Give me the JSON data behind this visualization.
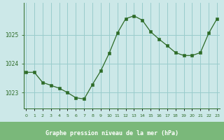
{
  "x": [
    0,
    1,
    2,
    3,
    4,
    5,
    6,
    7,
    8,
    9,
    10,
    11,
    12,
    13,
    14,
    15,
    16,
    17,
    18,
    19,
    20,
    21,
    22,
    23
  ],
  "y": [
    1023.7,
    1023.7,
    1023.35,
    1023.25,
    1023.15,
    1023.0,
    1022.82,
    1022.78,
    1023.28,
    1023.75,
    1024.35,
    1025.05,
    1025.55,
    1025.65,
    1025.5,
    1025.1,
    1024.85,
    1024.62,
    1024.38,
    1024.28,
    1024.28,
    1024.38,
    1025.05,
    1025.55
  ],
  "line_color": "#2d6b27",
  "marker_color": "#2d6b27",
  "bg_color": "#cce8e8",
  "grid_color": "#99cccc",
  "xlabel": "Graphe pression niveau de la mer (hPa)",
  "xlabel_color": "#1a4a1a",
  "yticks": [
    1023,
    1024,
    1025
  ],
  "xtick_labels": [
    "0",
    "1",
    "2",
    "3",
    "4",
    "5",
    "6",
    "7",
    "8",
    "9",
    "10",
    "11",
    "12",
    "13",
    "14",
    "15",
    "16",
    "17",
    "18",
    "19",
    "20",
    "21",
    "22",
    "23"
  ],
  "ylim": [
    1022.45,
    1026.1
  ],
  "xlim": [
    -0.3,
    23.3
  ],
  "tick_color": "#2d6b27",
  "axis_color": "#2d6b27",
  "bottom_bg": "#7ab87a",
  "bottom_label_bg": "#5a9a5a"
}
